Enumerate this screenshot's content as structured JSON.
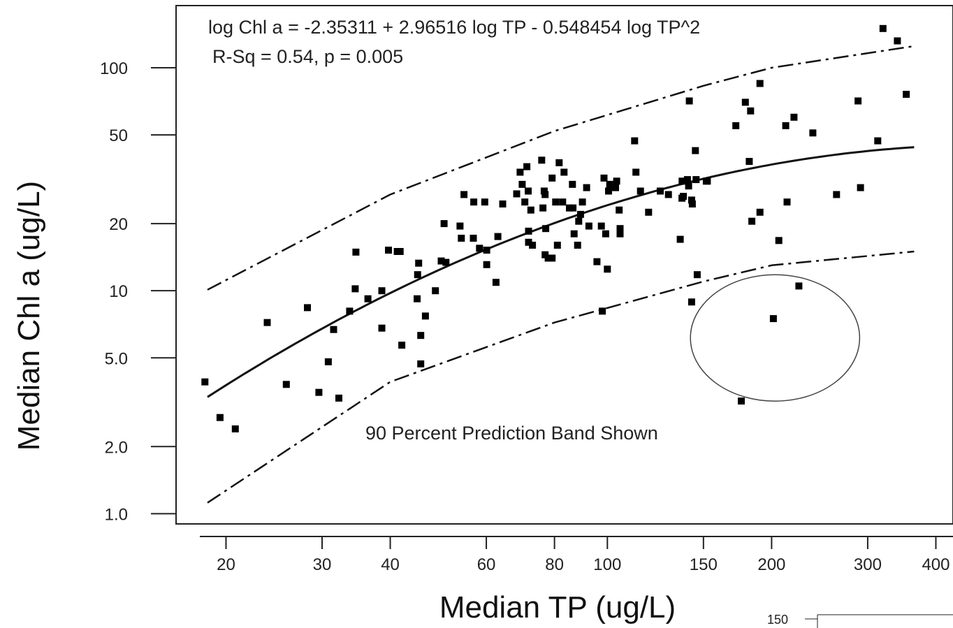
{
  "chart_data": {
    "type": "scatter",
    "title": "",
    "xlabel": "Median TP (ug/L)",
    "ylabel": "Median Chl a (ug/L)",
    "x_scale": "log",
    "y_scale": "log",
    "xlim": [
      16.2,
      430
    ],
    "ylim": [
      0.9,
      190
    ],
    "x_ticks": [
      20,
      30,
      40,
      60,
      80,
      100,
      150,
      200,
      300,
      400
    ],
    "x_tick_labels": [
      "20",
      "30",
      "40",
      "60",
      "80",
      "100",
      "150",
      "200",
      "300",
      "400"
    ],
    "y_ticks": [
      1.0,
      2.0,
      5.0,
      10,
      20,
      50,
      100
    ],
    "y_tick_labels": [
      "1.0",
      "2.0",
      "5.0",
      "10",
      "20",
      "50",
      "100"
    ],
    "grid": false,
    "legend": "none",
    "annotations": {
      "equation": "log Chl a = -2.35311 + 2.96516 log TP - 0.548454 log TP^2",
      "stats": "R-Sq = 0.54,  p = 0.005",
      "band_note": "90 Percent Prediction Band Shown"
    },
    "regression": {
      "intercept": -2.35311,
      "b1": 2.96516,
      "b2": -0.548454,
      "x_range": [
        18.5,
        365
      ]
    },
    "prediction_band_90": {
      "upper": [
        [
          18.5,
          10.1
        ],
        [
          40,
          27
        ],
        [
          80,
          52
        ],
        [
          150,
          83
        ],
        [
          200,
          100
        ],
        [
          365,
          125
        ]
      ],
      "lower": [
        [
          18.5,
          1.12
        ],
        [
          40,
          3.9
        ],
        [
          80,
          7.2
        ],
        [
          150,
          11.0
        ],
        [
          200,
          13.0
        ],
        [
          365,
          15.0
        ]
      ]
    },
    "highlight_ellipse": {
      "center": [
        200,
        6.0
      ],
      "x_range": [
        142,
        290
      ],
      "y_range": [
        3.2,
        11.8
      ]
    },
    "points": [
      [
        18.3,
        3.9
      ],
      [
        19.5,
        2.7
      ],
      [
        20.8,
        2.4
      ],
      [
        23.8,
        7.2
      ],
      [
        25.8,
        3.8
      ],
      [
        28.2,
        8.4
      ],
      [
        29.6,
        3.5
      ],
      [
        30.8,
        4.8
      ],
      [
        31.5,
        6.7
      ],
      [
        32.2,
        3.3
      ],
      [
        33.7,
        8.1
      ],
      [
        34.5,
        10.2
      ],
      [
        34.6,
        14.9
      ],
      [
        36.4,
        9.2
      ],
      [
        38.6,
        10.0
      ],
      [
        38.6,
        6.8
      ],
      [
        39.7,
        15.2
      ],
      [
        41.2,
        15.0
      ],
      [
        41.7,
        15.0
      ],
      [
        42.0,
        5.7
      ],
      [
        44.8,
        9.2
      ],
      [
        44.9,
        11.8
      ],
      [
        45.1,
        13.3
      ],
      [
        45.5,
        4.7
      ],
      [
        45.5,
        6.3
      ],
      [
        46.4,
        7.7
      ],
      [
        48.4,
        10.0
      ],
      [
        49.6,
        13.6
      ],
      [
        50.2,
        20.0
      ],
      [
        50.6,
        13.4
      ],
      [
        53.7,
        19.5
      ],
      [
        54.0,
        17.2
      ],
      [
        54.6,
        27.0
      ],
      [
        56.8,
        17.2
      ],
      [
        56.9,
        25.0
      ],
      [
        58.3,
        15.5
      ],
      [
        59.6,
        25.0
      ],
      [
        60.1,
        13.1
      ],
      [
        60.1,
        15.2
      ],
      [
        62.5,
        10.9
      ],
      [
        63.0,
        17.5
      ],
      [
        64.3,
        24.5
      ],
      [
        68.2,
        27.2
      ],
      [
        69.2,
        34.0
      ],
      [
        69.8,
        30.0
      ],
      [
        70.6,
        25.0
      ],
      [
        71.2,
        36.0
      ],
      [
        71.6,
        28.0
      ],
      [
        71.7,
        16.5
      ],
      [
        71.7,
        18.5
      ],
      [
        72.4,
        23.0
      ],
      [
        72.9,
        16.0
      ],
      [
        75.8,
        38.5
      ],
      [
        76.2,
        23.5
      ],
      [
        76.6,
        28.0
      ],
      [
        76.9,
        27.0
      ],
      [
        76.9,
        14.5
      ],
      [
        77.1,
        19.0
      ],
      [
        77.9,
        14.0
      ],
      [
        79.2,
        32.0
      ],
      [
        79.2,
        14.0
      ],
      [
        80.4,
        25.0
      ],
      [
        81.0,
        16.0
      ],
      [
        81.6,
        37.5
      ],
      [
        82.8,
        25.0
      ],
      [
        83.3,
        34.0
      ],
      [
        85.2,
        23.5
      ],
      [
        86.3,
        30.0
      ],
      [
        86.5,
        23.5
      ],
      [
        86.9,
        18.0
      ],
      [
        88.2,
        16.0
      ],
      [
        88.6,
        20.5
      ],
      [
        89.3,
        22.0
      ],
      [
        90.0,
        25.0
      ],
      [
        91.6,
        29.0
      ],
      [
        92.5,
        19.5
      ],
      [
        95.7,
        13.5
      ],
      [
        97.5,
        19.5
      ],
      [
        97.9,
        8.1
      ],
      [
        98.6,
        32.0
      ],
      [
        99.3,
        18.0
      ],
      [
        100.0,
        12.5
      ],
      [
        100.5,
        28.0
      ],
      [
        101.0,
        30.0
      ],
      [
        103.5,
        29.0
      ],
      [
        104.0,
        31.0
      ],
      [
        105.1,
        23.0
      ],
      [
        105.5,
        19.0
      ],
      [
        105.5,
        18.0
      ],
      [
        112.2,
        47.0
      ],
      [
        112.8,
        34.0
      ],
      [
        115.0,
        28.0
      ],
      [
        119.0,
        22.5
      ],
      [
        125.0,
        28.0
      ],
      [
        129.4,
        27.0
      ],
      [
        136.0,
        17.0
      ],
      [
        137.0,
        26.0
      ],
      [
        137.1,
        31.0
      ],
      [
        137.8,
        26.5
      ],
      [
        140.2,
        31.5
      ],
      [
        140.9,
        29.5
      ],
      [
        141.3,
        71.0
      ],
      [
        142.7,
        25.5
      ],
      [
        142.7,
        8.9
      ],
      [
        143.1,
        24.5
      ],
      [
        145.0,
        42.5
      ],
      [
        145.4,
        31.5
      ],
      [
        146.1,
        11.8
      ],
      [
        151.8,
        31.0
      ],
      [
        152.5,
        31.0
      ],
      [
        172.0,
        55.0
      ],
      [
        176.0,
        3.2
      ],
      [
        179.0,
        70.0
      ],
      [
        182.0,
        38.0
      ],
      [
        183.0,
        64.0
      ],
      [
        184.0,
        20.5
      ],
      [
        190.4,
        85.0
      ],
      [
        190.4,
        22.5
      ],
      [
        201.5,
        7.5
      ],
      [
        206.2,
        16.8
      ],
      [
        212.3,
        55.0
      ],
      [
        213.5,
        25.0
      ],
      [
        219.8,
        60.0
      ],
      [
        224.4,
        10.5
      ],
      [
        238.0,
        51.0
      ],
      [
        263.0,
        27.0
      ],
      [
        288.0,
        71.0
      ],
      [
        291.0,
        29.0
      ],
      [
        313.0,
        47.0
      ],
      [
        320.0,
        150.0
      ],
      [
        340.0,
        132.0
      ],
      [
        353.0,
        76.0
      ]
    ]
  },
  "stray_fragment": {
    "label": "150"
  }
}
